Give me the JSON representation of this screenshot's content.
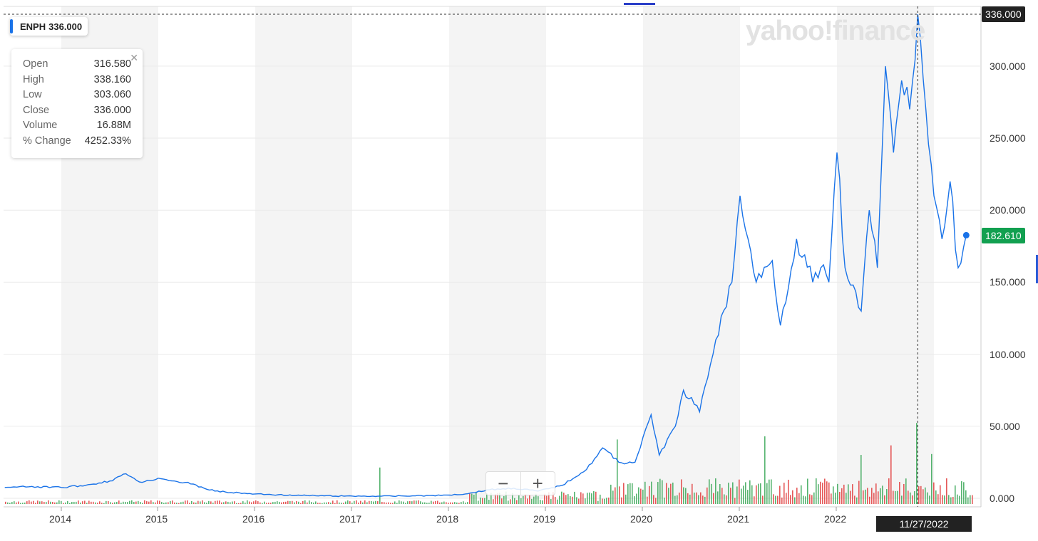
{
  "ticker_chip": {
    "symbol": "ENPH",
    "price": "336.000"
  },
  "ohlc": {
    "rows": [
      {
        "label": "Open",
        "value": "316.580"
      },
      {
        "label": "High",
        "value": "338.160"
      },
      {
        "label": "Low",
        "value": "303.060"
      },
      {
        "label": "Close",
        "value": "336.000"
      },
      {
        "label": "Volume",
        "value": "16.88M"
      },
      {
        "label": "% Change",
        "value": "4252.33%"
      }
    ],
    "close_icon": "close-icon"
  },
  "watermark": "yahoo!finance",
  "crosshair": {
    "price_tag": "336.000",
    "date_tag": "11/27/2022"
  },
  "last_price_tag": "182.610",
  "zoom": {
    "minus": "−",
    "plus": "+"
  },
  "colors": {
    "line": "#1a73e8",
    "up": "#3aa757",
    "down": "#e03c3c",
    "last_tag": "#12a050",
    "band": "#f4f4f4"
  },
  "chart_data": {
    "type": "line",
    "series": [
      {
        "name": "ENPH",
        "x": [
          "2013-06",
          "2013-09",
          "2014-01",
          "2014-04",
          "2014-07",
          "2014-09",
          "2014-11",
          "2015-01",
          "2015-03",
          "2015-05",
          "2015-08",
          "2015-10",
          "2016-01",
          "2016-06",
          "2016-12",
          "2017-06",
          "2017-12",
          "2018-03",
          "2018-06",
          "2018-09",
          "2018-12",
          "2019-03",
          "2019-06",
          "2019-08",
          "2019-10",
          "2019-12",
          "2020-02",
          "2020-03",
          "2020-05",
          "2020-06",
          "2020-08",
          "2020-10",
          "2020-12",
          "2021-01",
          "2021-02",
          "2021-03",
          "2021-05",
          "2021-06",
          "2021-08",
          "2021-10",
          "2021-11",
          "2021-12",
          "2022-01",
          "2022-02",
          "2022-04",
          "2022-05",
          "2022-06",
          "2022-07",
          "2022-08",
          "2022-09",
          "2022-10",
          "2022-11",
          "2022-12",
          "2023-01",
          "2023-02",
          "2023-03",
          "2023-04",
          "2023-05"
        ],
        "values": [
          7.5,
          8,
          7.5,
          9,
          12,
          17,
          11,
          14,
          12,
          10,
          5,
          4,
          3,
          2,
          1.5,
          1.5,
          2,
          3,
          6,
          7,
          5,
          9,
          20,
          35,
          25,
          25,
          58,
          30,
          50,
          75,
          60,
          110,
          150,
          210,
          180,
          150,
          165,
          120,
          180,
          150,
          160,
          150,
          240,
          160,
          130,
          200,
          160,
          300,
          240,
          290,
          270,
          336,
          270,
          210,
          180,
          220,
          160,
          182.61
        ]
      }
    ],
    "x_tick_labels": [
      "2014",
      "2015",
      "2016",
      "2017",
      "2018",
      "2019",
      "2020",
      "2021",
      "2022"
    ],
    "y_tick_labels": [
      "0.000",
      "50.000",
      "100.000",
      "150.000",
      "200.000",
      "250.000",
      "300.000"
    ],
    "ylim": [
      0,
      340
    ],
    "volume": {
      "unit": "M",
      "note": "daily volume bars, green up / red down"
    },
    "grid": true,
    "legend": "top-left"
  }
}
